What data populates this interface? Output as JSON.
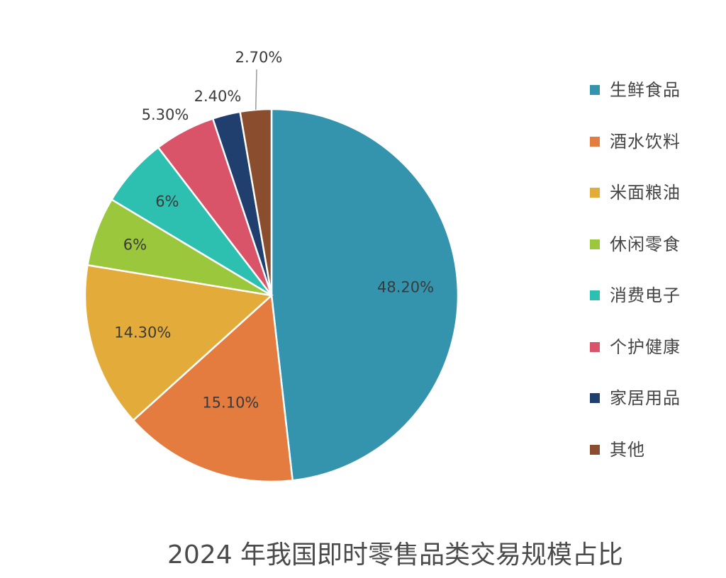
{
  "chart_data": {
    "type": "pie",
    "title": "2024 年我国即时零售品类交易规模占比",
    "legend_position": "right",
    "categories": [
      "生鲜食品",
      "酒水饮料",
      "米面粮油",
      "休闲零食",
      "消费电子",
      "个护健康",
      "家居用品",
      "其他"
    ],
    "values": [
      48.2,
      15.1,
      14.3,
      6,
      6,
      5.3,
      2.4,
      2.7
    ],
    "value_labels": [
      "48.20%",
      "15.10%",
      "14.30%",
      "6%",
      "6%",
      "5.30%",
      "2.40%",
      "2.70%"
    ],
    "colors": [
      "#3594ad",
      "#e47c3f",
      "#e3ac3a",
      "#9ac73c",
      "#2dbfb0",
      "#d95369",
      "#213f6e",
      "#8a4d2e"
    ],
    "start_angle_deg": 0,
    "direction": "clockwise"
  }
}
